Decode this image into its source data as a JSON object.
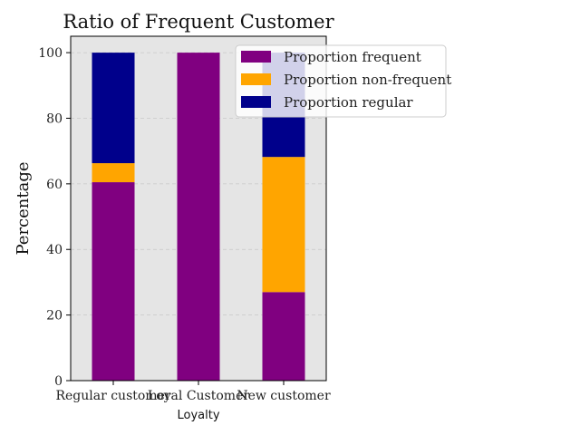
{
  "chart_data": {
    "type": "bar",
    "stacked": true,
    "title": "Ratio of Frequent Customer",
    "xlabel": "Loyalty",
    "ylabel": "Percentage",
    "categories": [
      "Regular customer",
      "Loyal Customer",
      "New customer"
    ],
    "series": [
      {
        "name": "Proportion frequent",
        "color": "#800080",
        "values": [
          60.5,
          100.0,
          27.0
        ]
      },
      {
        "name": "Proportion non-frequent",
        "color": "#FFA500",
        "values": [
          5.8,
          0.0,
          41.2
        ]
      },
      {
        "name": "Proportion regular",
        "color": "#00008B",
        "values": [
          33.7,
          0.0,
          31.8
        ]
      }
    ],
    "ylim": [
      0,
      105
    ],
    "yticks": [
      0,
      20,
      40,
      60,
      80,
      100
    ],
    "grid": true,
    "legend_position": "upper right",
    "plot_background": "#E5E5E5"
  }
}
